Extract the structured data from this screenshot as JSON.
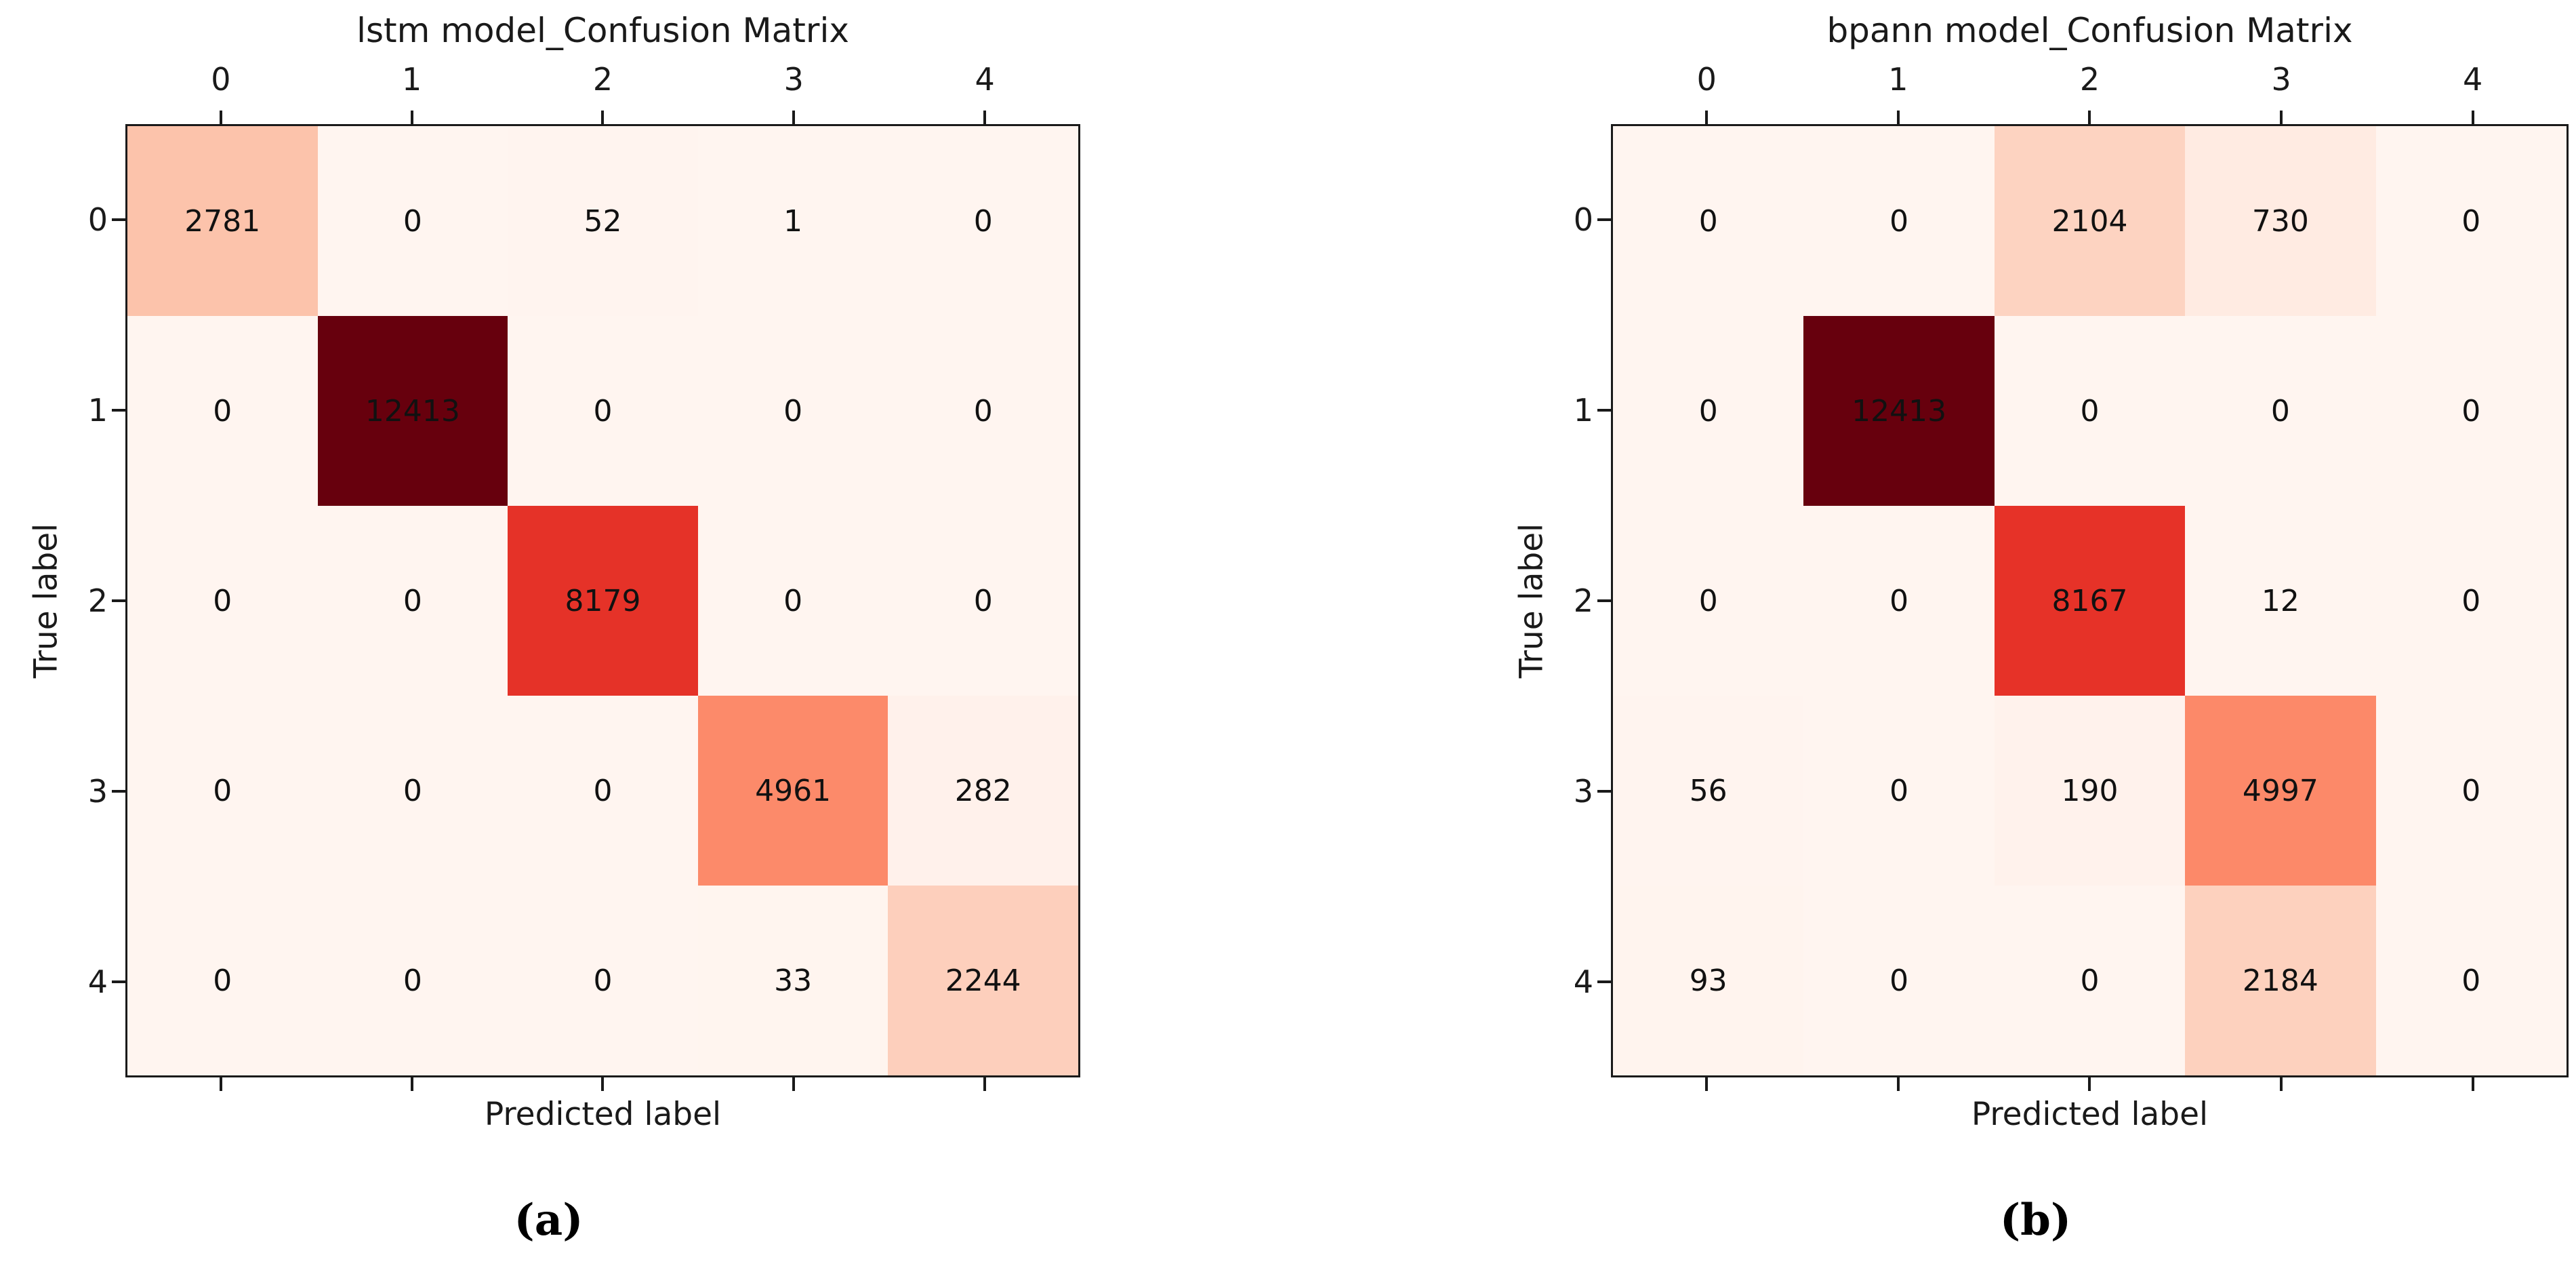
{
  "colors": {
    "background": "#ffffff",
    "spine": "#1a1a1a",
    "tick": "#1a1a1a",
    "cell_text": "#111111",
    "caption_text": "#000000",
    "reds_colormap_stops": [
      [
        0.0,
        "#fff5f0"
      ],
      [
        0.125,
        "#fee0d2"
      ],
      [
        0.25,
        "#fcbba1"
      ],
      [
        0.375,
        "#fc9272"
      ],
      [
        0.5,
        "#fb6a4a"
      ],
      [
        0.625,
        "#ef3b2c"
      ],
      [
        0.75,
        "#cb181d"
      ],
      [
        0.875,
        "#a50f15"
      ],
      [
        1.0,
        "#67000d"
      ]
    ]
  },
  "chart_data": [
    {
      "type": "heatmap",
      "title": "lstm model_Confusion Matrix",
      "xlabel": "Predicted label",
      "ylabel": "True label",
      "caption": "(a)",
      "x_tick_labels": [
        "0",
        "1",
        "2",
        "3",
        "4"
      ],
      "y_tick_labels": [
        "0",
        "1",
        "2",
        "3",
        "4"
      ],
      "matrix": [
        [
          2781,
          0,
          52,
          1,
          0
        ],
        [
          0,
          12413,
          0,
          0,
          0
        ],
        [
          0,
          0,
          8179,
          0,
          0
        ],
        [
          0,
          0,
          0,
          4961,
          282
        ],
        [
          0,
          0,
          0,
          33,
          2244
        ]
      ],
      "colormap": "Reds",
      "vmin": 0,
      "vmax": 12413,
      "legend": "none",
      "grid": false
    },
    {
      "type": "heatmap",
      "title": "bpann model_Confusion Matrix",
      "xlabel": "Predicted label",
      "ylabel": "True label",
      "caption": "(b)",
      "x_tick_labels": [
        "0",
        "1",
        "2",
        "3",
        "4"
      ],
      "y_tick_labels": [
        "0",
        "1",
        "2",
        "3",
        "4"
      ],
      "matrix": [
        [
          0,
          0,
          2104,
          730,
          0
        ],
        [
          0,
          12413,
          0,
          0,
          0
        ],
        [
          0,
          0,
          8167,
          12,
          0
        ],
        [
          56,
          0,
          190,
          4997,
          0
        ],
        [
          93,
          0,
          0,
          2184,
          0
        ]
      ],
      "colormap": "Reds",
      "vmin": 0,
      "vmax": 12413,
      "legend": "none",
      "grid": false
    }
  ]
}
